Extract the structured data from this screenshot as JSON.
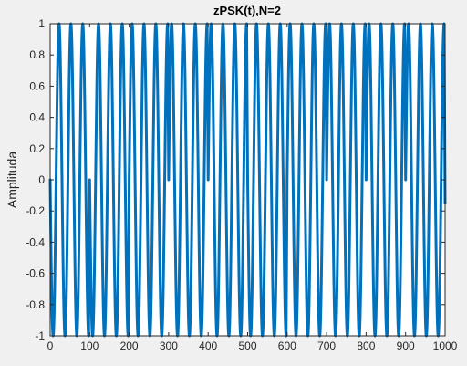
{
  "chart_data": {
    "type": "line",
    "title": "zPSK(t),N=2",
    "xlabel": "",
    "ylabel": "Amplituda",
    "xlim": [
      0,
      1000
    ],
    "ylim": [
      -1,
      1
    ],
    "xticks": [
      0,
      100,
      200,
      300,
      400,
      500,
      600,
      700,
      800,
      900,
      1000
    ],
    "yticks": [
      -1,
      -0.8,
      -0.6,
      -0.4,
      -0.2,
      0,
      0.2,
      0.4,
      0.6,
      0.8,
      1
    ],
    "xtick_labels": [
      "0",
      "100",
      "200",
      "300",
      "400",
      "500",
      "600",
      "700",
      "800",
      "900",
      "1000"
    ],
    "ytick_labels": [
      "-1",
      "-0.8",
      "-0.6",
      "-0.4",
      "-0.2",
      "0",
      "0.2",
      "0.4",
      "0.6",
      "0.8",
      "1"
    ],
    "grid": false,
    "legend": "none",
    "series": [
      {
        "color": "#0072BD",
        "x": [
          0,
          7.5,
          15,
          22.5,
          30,
          37.5,
          45,
          52.5,
          60,
          67.5,
          75,
          82.5,
          90,
          97.5,
          100,
          107.5,
          115,
          122.5,
          130,
          137.5,
          145,
          152.5,
          160,
          167.5,
          175,
          182.5,
          190,
          197.5,
          200,
          207.5,
          215,
          222.5,
          230,
          237.5,
          245,
          252.5,
          260,
          267.5,
          275,
          282.5,
          290,
          297.5,
          300,
          307.5,
          315,
          322.5,
          330,
          337.5,
          345,
          352.5,
          360,
          367.5,
          375,
          382.5,
          390,
          397.5,
          400,
          407.5,
          415,
          422.5,
          430,
          437.5,
          445,
          452.5,
          460,
          467.5,
          475,
          482.5,
          490,
          497.5,
          500,
          507.5,
          515,
          522.5,
          530,
          537.5,
          545,
          552.5,
          560,
          567.5,
          575,
          582.5,
          590,
          597.5,
          600,
          607.5,
          615,
          622.5,
          630,
          637.5,
          645,
          652.5,
          660,
          667.5,
          675,
          682.5,
          690,
          697.5,
          700,
          707.5,
          715,
          722.5,
          730,
          737.5,
          745,
          752.5,
          760,
          767.5,
          775,
          782.5,
          790,
          797.5,
          800,
          807.5,
          815,
          822.5,
          830,
          837.5,
          845,
          852.5,
          860,
          867.5,
          875,
          882.5,
          890,
          897.5,
          900,
          907.5,
          915,
          922.5,
          930,
          937.5,
          945,
          952.5,
          960,
          967.5,
          975,
          982.5,
          990,
          997.5,
          1000
        ],
        "y": [
          0,
          -1,
          0,
          1,
          0,
          -1,
          0,
          1,
          0,
          -1,
          0,
          1,
          0,
          -1,
          0,
          -1,
          0,
          1,
          0,
          -1,
          0,
          1,
          0,
          -1,
          0,
          1,
          0,
          -1,
          0,
          1,
          0,
          -1,
          0,
          1,
          0,
          -1,
          0,
          1,
          0,
          -1,
          0,
          1,
          0,
          1,
          0,
          -1,
          0,
          1,
          0,
          -1,
          0,
          1,
          0,
          -1,
          0,
          1,
          0,
          1,
          0,
          -1,
          0,
          1,
          0,
          -1,
          0,
          1,
          0,
          -1,
          0,
          1,
          0,
          -1,
          0,
          1,
          0,
          -1,
          0,
          1,
          0,
          -1,
          0,
          1,
          0,
          -1,
          0,
          1,
          0,
          -1,
          0,
          1,
          0,
          -1,
          0,
          1,
          0,
          -1,
          0,
          1,
          0,
          1,
          0,
          -1,
          0,
          1,
          0,
          -1,
          0,
          1,
          0,
          -1,
          0,
          1,
          0,
          1,
          0,
          -1,
          0,
          1,
          0,
          -1,
          0,
          1,
          0,
          -1,
          0,
          1,
          0,
          1,
          0,
          -1,
          0,
          1,
          0,
          -1,
          0,
          1,
          0,
          -1,
          0,
          1,
          -0.15
        ]
      }
    ]
  }
}
